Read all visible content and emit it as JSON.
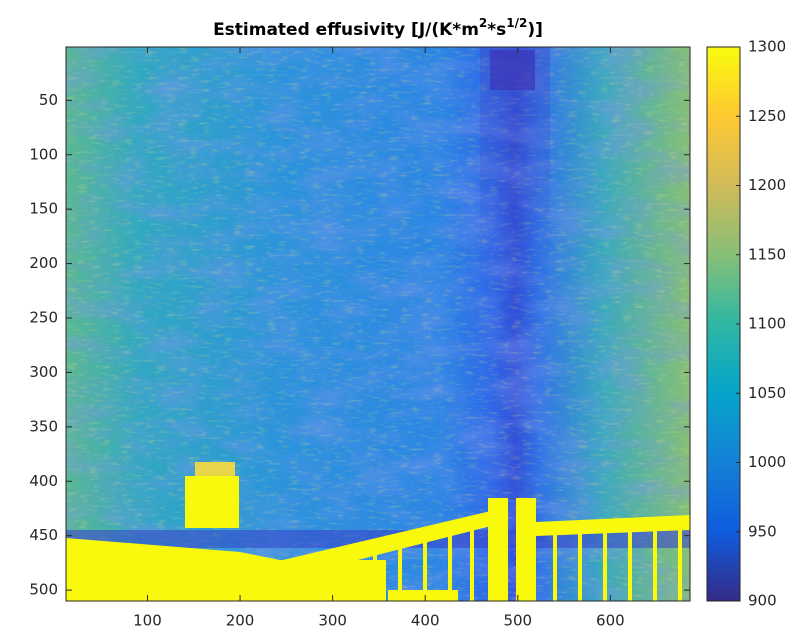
{
  "chart_data": {
    "type": "heatmap",
    "title": [
      "Estimated effusivity [J/(K*m",
      "2",
      "*s",
      "1/2",
      ")]"
    ],
    "xlim": [
      12,
      686
    ],
    "xticks": [
      100,
      200,
      300,
      400,
      500,
      600
    ],
    "ylim": [
      1,
      510
    ],
    "yticks": [
      50,
      100,
      150,
      200,
      250,
      300,
      350,
      400,
      450,
      500
    ],
    "y_reversed": true,
    "colormap": "parula",
    "clim": [
      900,
      1300
    ],
    "cticks": [
      900,
      950,
      1000,
      1050,
      1100,
      1150,
      1200,
      1250,
      1300
    ]
  }
}
